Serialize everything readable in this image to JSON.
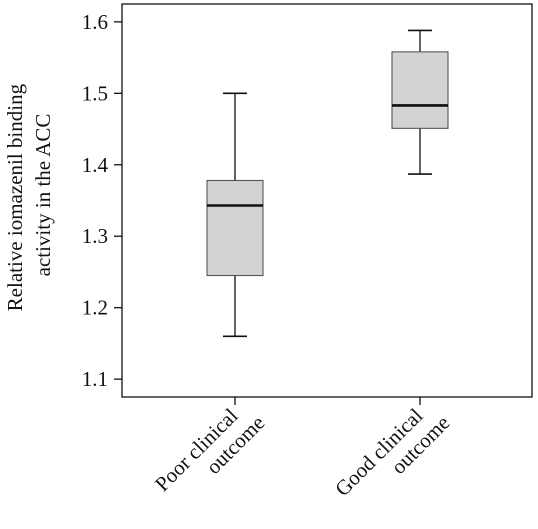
{
  "chart_data": {
    "type": "boxplot",
    "ylabel_lines": [
      "Relative iomazenil binding",
      "activity in the ACC"
    ],
    "ylim": [
      1.075,
      1.625
    ],
    "yticks": [
      1.1,
      1.2,
      1.3,
      1.4,
      1.5,
      1.6
    ],
    "ytick_labels": [
      "1.1",
      "1.2",
      "1.3",
      "1.4",
      "1.5",
      "1.6"
    ],
    "grid": false,
    "categories": [
      {
        "label_lines": [
          "Poor clinical",
          "outcome"
        ]
      },
      {
        "label_lines": [
          "Good clinical",
          "outcome"
        ]
      }
    ],
    "boxes": [
      {
        "min": 1.16,
        "q1": 1.245,
        "median": 1.343,
        "q3": 1.378,
        "max": 1.5
      },
      {
        "min": 1.387,
        "q1": 1.451,
        "median": 1.483,
        "q3": 1.558,
        "max": 1.588
      }
    ],
    "box_fill": "#d3d3d3",
    "stroke_color": "#111111"
  }
}
